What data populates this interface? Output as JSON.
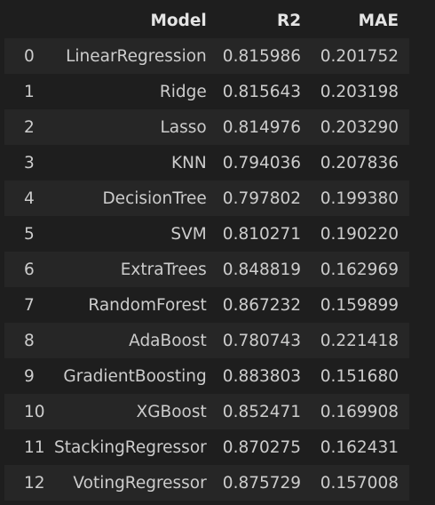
{
  "table": {
    "columns": [
      "",
      "Model",
      "R2",
      "MAE"
    ],
    "rows": [
      {
        "index": "0",
        "model": "LinearRegression",
        "r2": "0.815986",
        "mae": "0.201752"
      },
      {
        "index": "1",
        "model": "Ridge",
        "r2": "0.815643",
        "mae": "0.203198"
      },
      {
        "index": "2",
        "model": "Lasso",
        "r2": "0.814976",
        "mae": "0.203290"
      },
      {
        "index": "3",
        "model": "KNN",
        "r2": "0.794036",
        "mae": "0.207836"
      },
      {
        "index": "4",
        "model": "DecisionTree",
        "r2": "0.797802",
        "mae": "0.199380"
      },
      {
        "index": "5",
        "model": "SVM",
        "r2": "0.810271",
        "mae": "0.190220"
      },
      {
        "index": "6",
        "model": "ExtraTrees",
        "r2": "0.848819",
        "mae": "0.162969"
      },
      {
        "index": "7",
        "model": "RandomForest",
        "r2": "0.867232",
        "mae": "0.159899"
      },
      {
        "index": "8",
        "model": "AdaBoost",
        "r2": "0.780743",
        "mae": "0.221418"
      },
      {
        "index": "9",
        "model": "GradientBoosting",
        "r2": "0.883803",
        "mae": "0.151680"
      },
      {
        "index": "10",
        "model": "XGBoost",
        "r2": "0.852471",
        "mae": "0.169908"
      },
      {
        "index": "11",
        "model": "StackingRegressor",
        "r2": "0.870275",
        "mae": "0.162431"
      },
      {
        "index": "12",
        "model": "VotingRegressor",
        "r2": "0.875729",
        "mae": "0.157008"
      }
    ]
  }
}
